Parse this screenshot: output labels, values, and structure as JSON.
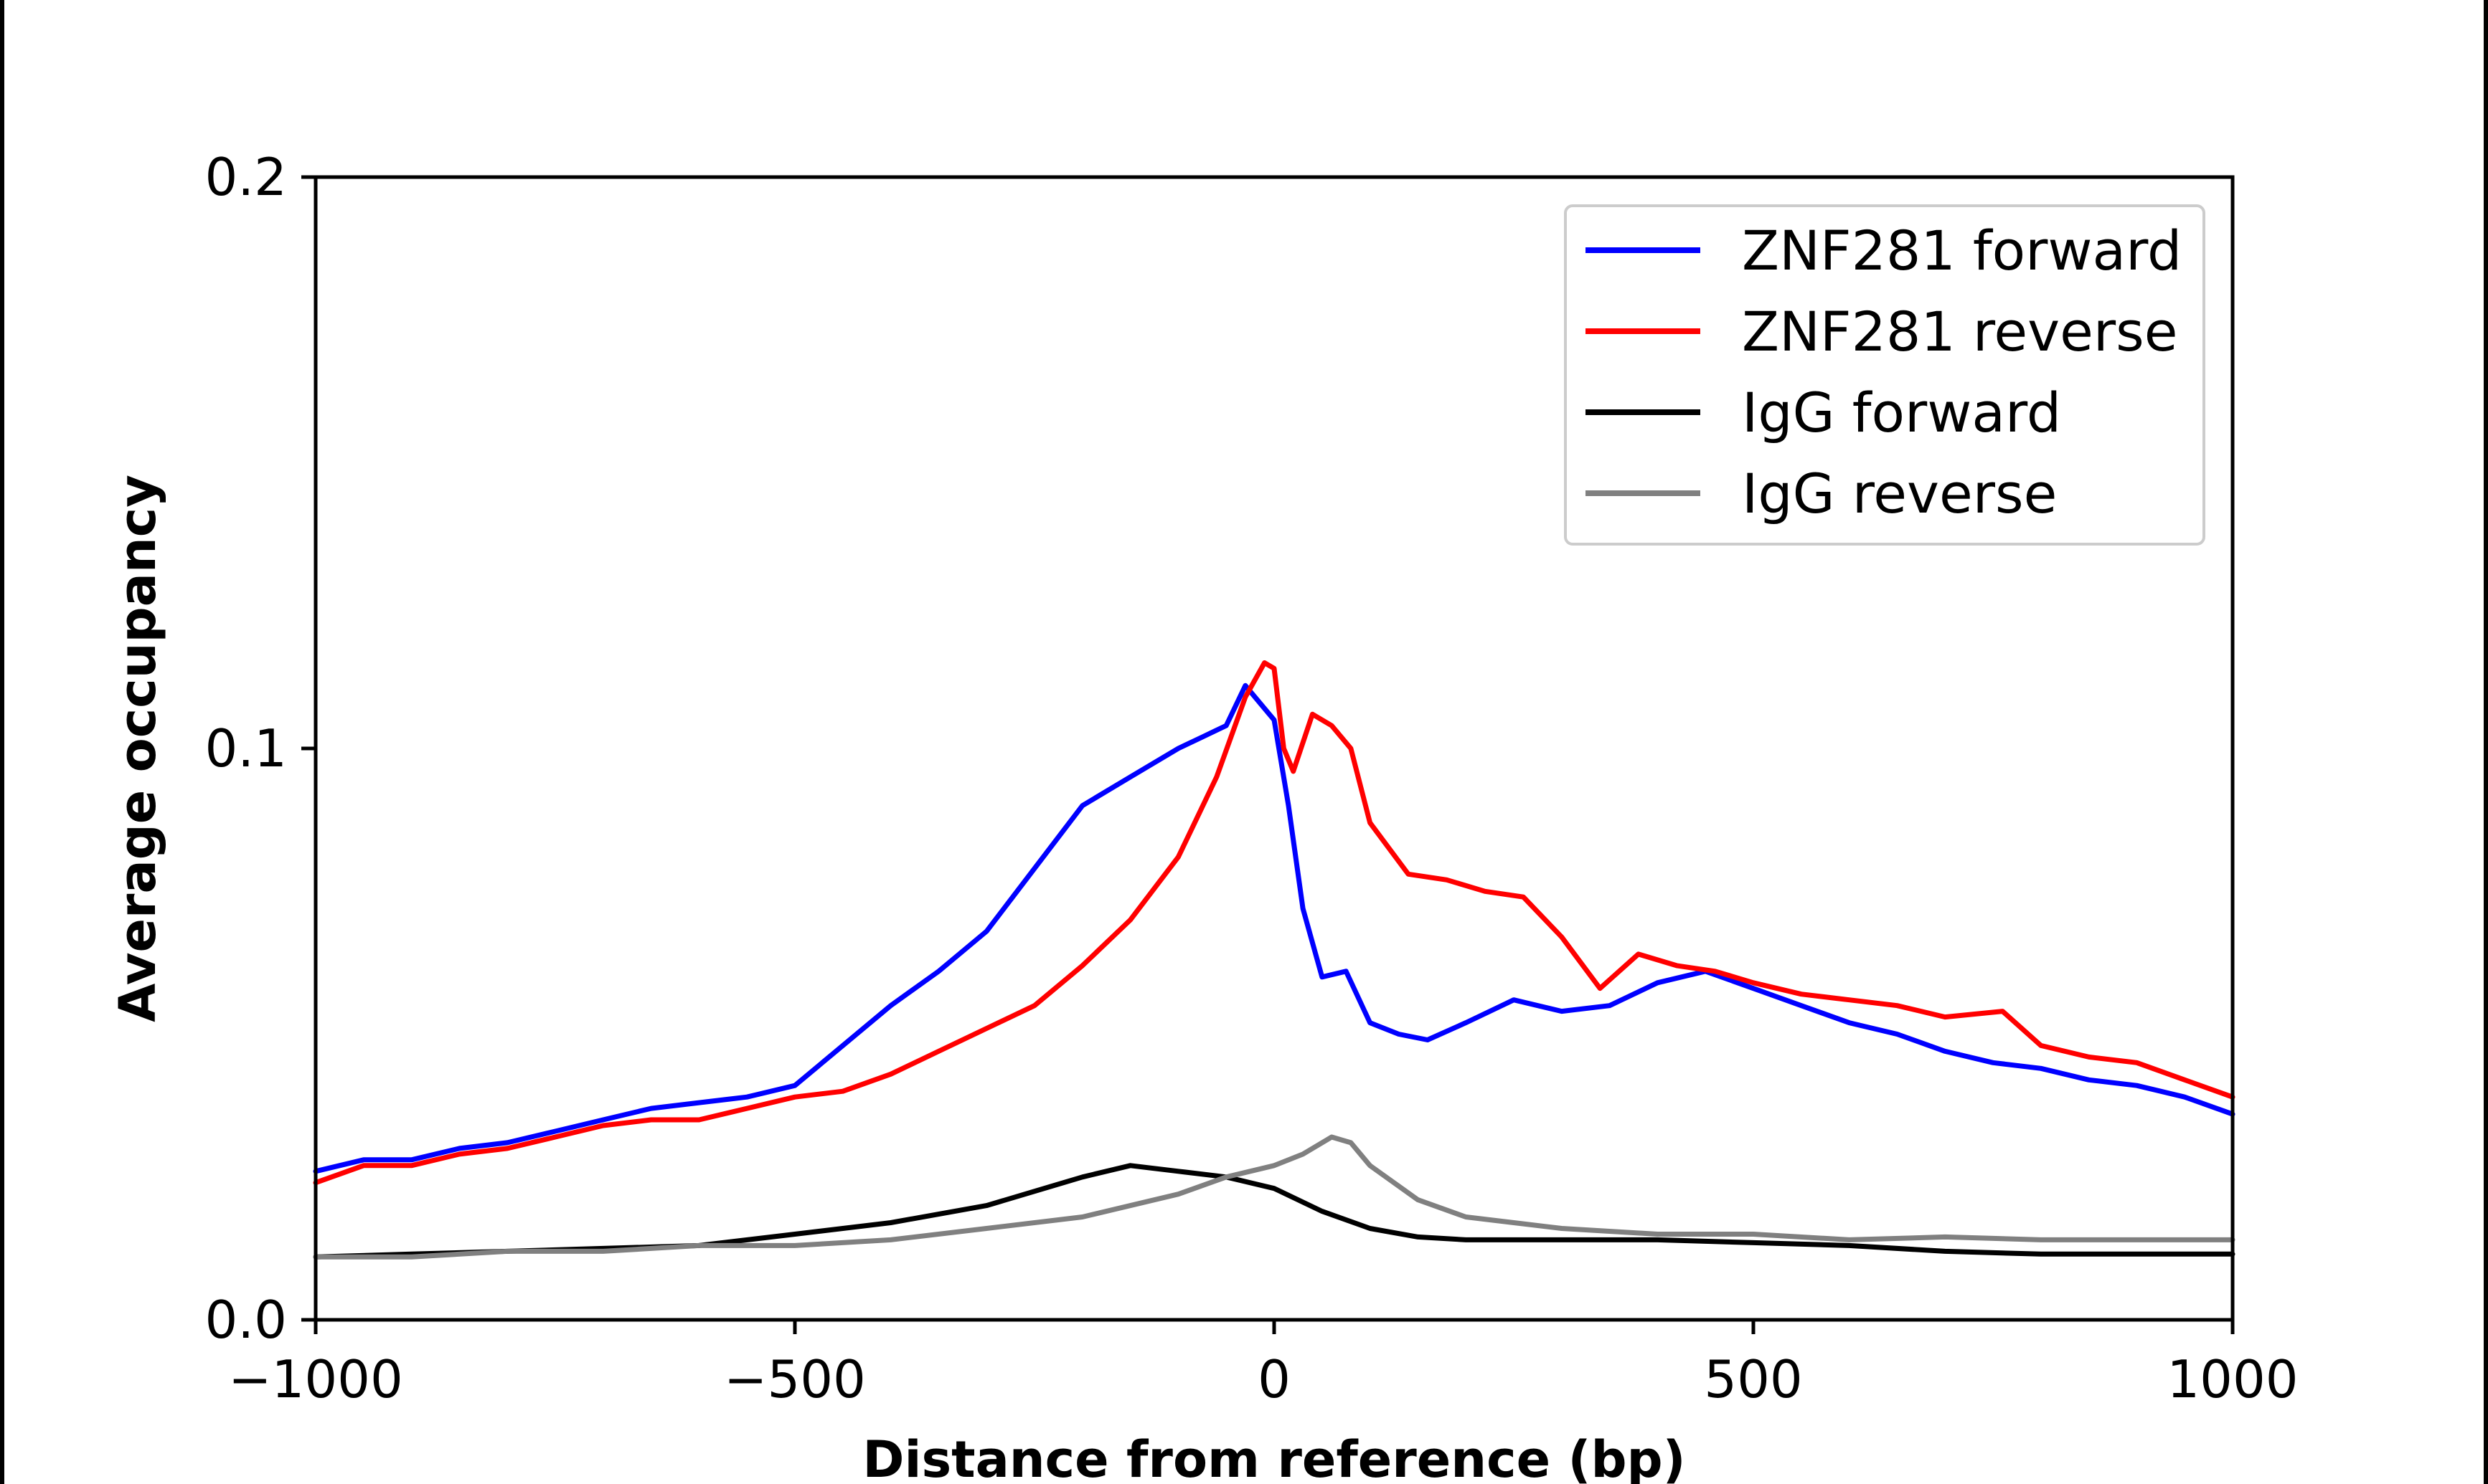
{
  "chart_data": {
    "type": "line",
    "xlabel": "Distance from reference (bp)",
    "ylabel": "Average occupancy",
    "xlim": [
      -1000,
      1000
    ],
    "ylim": [
      0,
      0.2
    ],
    "x_ticks": [
      -1000,
      -500,
      0,
      500,
      1000
    ],
    "x_tick_labels": [
      "−1000",
      "−500",
      "0",
      "500",
      "1000"
    ],
    "y_ticks": [
      0.0,
      0.1,
      0.2
    ],
    "y_tick_labels": [
      "0.0",
      "0.1",
      "0.2"
    ],
    "grid": false,
    "legend_position": "top-right",
    "series": [
      {
        "name": "ZNF281 forward",
        "color": "#0000ff",
        "points": [
          [
            -1000,
            0.026
          ],
          [
            -950,
            0.028
          ],
          [
            -900,
            0.028
          ],
          [
            -850,
            0.03
          ],
          [
            -800,
            0.031
          ],
          [
            -750,
            0.033
          ],
          [
            -700,
            0.035
          ],
          [
            -650,
            0.037
          ],
          [
            -600,
            0.038
          ],
          [
            -550,
            0.039
          ],
          [
            -500,
            0.041
          ],
          [
            -450,
            0.048
          ],
          [
            -400,
            0.055
          ],
          [
            -350,
            0.061
          ],
          [
            -300,
            0.068
          ],
          [
            -250,
            0.079
          ],
          [
            -200,
            0.09
          ],
          [
            -150,
            0.095
          ],
          [
            -100,
            0.1
          ],
          [
            -75,
            0.102
          ],
          [
            -50,
            0.104
          ],
          [
            -30,
            0.111
          ],
          [
            -10,
            0.107
          ],
          [
            0,
            0.105
          ],
          [
            15,
            0.09
          ],
          [
            30,
            0.072
          ],
          [
            50,
            0.06
          ],
          [
            75,
            0.061
          ],
          [
            100,
            0.052
          ],
          [
            130,
            0.05
          ],
          [
            160,
            0.049
          ],
          [
            200,
            0.052
          ],
          [
            250,
            0.056
          ],
          [
            300,
            0.054
          ],
          [
            350,
            0.055
          ],
          [
            400,
            0.059
          ],
          [
            450,
            0.061
          ],
          [
            500,
            0.058
          ],
          [
            550,
            0.055
          ],
          [
            600,
            0.052
          ],
          [
            650,
            0.05
          ],
          [
            700,
            0.047
          ],
          [
            750,
            0.045
          ],
          [
            800,
            0.044
          ],
          [
            850,
            0.042
          ],
          [
            900,
            0.041
          ],
          [
            950,
            0.039
          ],
          [
            1000,
            0.036
          ]
        ]
      },
      {
        "name": "ZNF281 reverse",
        "color": "#ff0000",
        "points": [
          [
            -1000,
            0.024
          ],
          [
            -950,
            0.027
          ],
          [
            -900,
            0.027
          ],
          [
            -850,
            0.029
          ],
          [
            -800,
            0.03
          ],
          [
            -750,
            0.032
          ],
          [
            -700,
            0.034
          ],
          [
            -650,
            0.035
          ],
          [
            -600,
            0.035
          ],
          [
            -550,
            0.037
          ],
          [
            -500,
            0.039
          ],
          [
            -450,
            0.04
          ],
          [
            -400,
            0.043
          ],
          [
            -350,
            0.047
          ],
          [
            -300,
            0.051
          ],
          [
            -250,
            0.055
          ],
          [
            -200,
            0.062
          ],
          [
            -150,
            0.07
          ],
          [
            -100,
            0.081
          ],
          [
            -60,
            0.095
          ],
          [
            -30,
            0.109
          ],
          [
            -10,
            0.115
          ],
          [
            0,
            0.114
          ],
          [
            10,
            0.1
          ],
          [
            20,
            0.096
          ],
          [
            40,
            0.106
          ],
          [
            60,
            0.104
          ],
          [
            80,
            0.1
          ],
          [
            100,
            0.087
          ],
          [
            140,
            0.078
          ],
          [
            180,
            0.077
          ],
          [
            220,
            0.075
          ],
          [
            260,
            0.074
          ],
          [
            300,
            0.067
          ],
          [
            340,
            0.058
          ],
          [
            380,
            0.064
          ],
          [
            420,
            0.062
          ],
          [
            460,
            0.061
          ],
          [
            500,
            0.059
          ],
          [
            550,
            0.057
          ],
          [
            600,
            0.056
          ],
          [
            650,
            0.055
          ],
          [
            700,
            0.053
          ],
          [
            760,
            0.054
          ],
          [
            800,
            0.048
          ],
          [
            850,
            0.046
          ],
          [
            900,
            0.045
          ],
          [
            950,
            0.042
          ],
          [
            1000,
            0.039
          ]
        ]
      },
      {
        "name": "IgG forward",
        "color": "#000000",
        "points": [
          [
            -1000,
            0.011
          ],
          [
            -900,
            0.0115
          ],
          [
            -800,
            0.012
          ],
          [
            -700,
            0.0125
          ],
          [
            -600,
            0.013
          ],
          [
            -500,
            0.015
          ],
          [
            -400,
            0.017
          ],
          [
            -300,
            0.02
          ],
          [
            -200,
            0.025
          ],
          [
            -150,
            0.027
          ],
          [
            -100,
            0.026
          ],
          [
            -50,
            0.025
          ],
          [
            0,
            0.023
          ],
          [
            50,
            0.019
          ],
          [
            100,
            0.016
          ],
          [
            150,
            0.0145
          ],
          [
            200,
            0.014
          ],
          [
            300,
            0.014
          ],
          [
            400,
            0.014
          ],
          [
            500,
            0.0135
          ],
          [
            600,
            0.013
          ],
          [
            700,
            0.012
          ],
          [
            800,
            0.0115
          ],
          [
            900,
            0.0115
          ],
          [
            1000,
            0.0115
          ]
        ]
      },
      {
        "name": "IgG reverse",
        "color": "#808080",
        "points": [
          [
            -1000,
            0.011
          ],
          [
            -900,
            0.011
          ],
          [
            -800,
            0.012
          ],
          [
            -700,
            0.012
          ],
          [
            -600,
            0.013
          ],
          [
            -500,
            0.013
          ],
          [
            -400,
            0.014
          ],
          [
            -300,
            0.016
          ],
          [
            -200,
            0.018
          ],
          [
            -100,
            0.022
          ],
          [
            -50,
            0.025
          ],
          [
            0,
            0.027
          ],
          [
            30,
            0.029
          ],
          [
            60,
            0.032
          ],
          [
            80,
            0.031
          ],
          [
            100,
            0.027
          ],
          [
            150,
            0.021
          ],
          [
            200,
            0.018
          ],
          [
            250,
            0.017
          ],
          [
            300,
            0.016
          ],
          [
            400,
            0.015
          ],
          [
            500,
            0.015
          ],
          [
            600,
            0.014
          ],
          [
            700,
            0.0145
          ],
          [
            800,
            0.014
          ],
          [
            900,
            0.014
          ],
          [
            1000,
            0.014
          ]
        ]
      }
    ]
  }
}
